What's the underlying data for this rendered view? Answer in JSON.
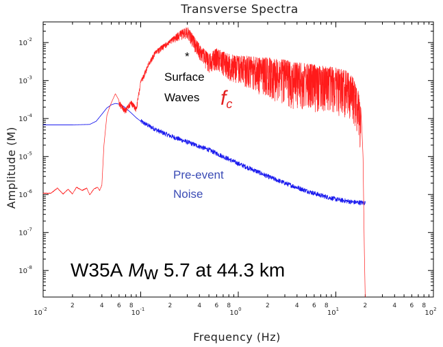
{
  "chart_data": {
    "type": "line",
    "title": "Transverse Spectra",
    "xlabel": "Frequency (Hz)",
    "ylabel": "Amplitude (M)",
    "xscale": "log",
    "yscale": "log",
    "xlim": [
      0.01,
      100
    ],
    "ylim": [
      2e-09,
      0.035
    ],
    "grid": false,
    "x_major_ticks": [
      {
        "base": "10",
        "exp": "-2",
        "value": 0.01
      },
      {
        "base": "10",
        "exp": "-1",
        "value": 0.1
      },
      {
        "base": "10",
        "exp": "0",
        "value": 1
      },
      {
        "base": "10",
        "exp": "1",
        "value": 10
      },
      {
        "base": "10",
        "exp": "2",
        "value": 100
      }
    ],
    "x_minor_labels": [
      "2",
      "4",
      "6",
      "8"
    ],
    "y_major_ticks": [
      {
        "base": "10",
        "exp": "-8",
        "value": 1e-08
      },
      {
        "base": "10",
        "exp": "-7",
        "value": 1e-07
      },
      {
        "base": "10",
        "exp": "-6",
        "value": 1e-06
      },
      {
        "base": "10",
        "exp": "-5",
        "value": 1e-05
      },
      {
        "base": "10",
        "exp": "-4",
        "value": 0.0001
      },
      {
        "base": "10",
        "exp": "-3",
        "value": 0.001
      },
      {
        "base": "10",
        "exp": "-2",
        "value": 0.01
      }
    ],
    "series": [
      {
        "color": "#ff1a1a",
        "style": "noisy-spectrum",
        "x": [
          0.01,
          0.012,
          0.014,
          0.016,
          0.018,
          0.02,
          0.022,
          0.025,
          0.028,
          0.03,
          0.033,
          0.036,
          0.038,
          0.04,
          0.042,
          0.045,
          0.048,
          0.05,
          0.055,
          0.06,
          0.065,
          0.07,
          0.075,
          0.08,
          0.09,
          0.1,
          0.12,
          0.14,
          0.16,
          0.2,
          0.25,
          0.3,
          0.35,
          0.4,
          0.5,
          0.6,
          0.7,
          0.8,
          1.0,
          1.3,
          1.6,
          2.0,
          3.0,
          4.0,
          5.0,
          7.0,
          10.0,
          13.0,
          15.0,
          17.0,
          18.0,
          18.5,
          19.0,
          19.3,
          19.6,
          20.0
        ],
        "y": [
          1.1e-06,
          1.1e-06,
          1.5e-06,
          1.05e-06,
          1.4e-06,
          1.05e-06,
          1.6e-06,
          1.3e-06,
          1.5e-06,
          1e-06,
          1.4e-06,
          1.6e-06,
          1.3e-06,
          1.8e-06,
          2e-05,
          0.00012,
          0.0002,
          0.00026,
          0.00045,
          0.0003,
          0.00022,
          0.00018,
          0.00025,
          0.0003,
          0.0002,
          0.001,
          0.003,
          0.006,
          0.008,
          0.012,
          0.02,
          0.026,
          0.015,
          0.009,
          0.005,
          0.007,
          0.006,
          0.005,
          0.0045,
          0.0045,
          0.004,
          0.004,
          0.0035,
          0.003,
          0.0028,
          0.0025,
          0.0022,
          0.0018,
          0.0012,
          0.0006,
          0.0002,
          5e-05,
          1e-05,
          5e-07,
          3e-08,
          2e-09
        ]
      },
      {
        "color": "#1a1aee",
        "style": "smooth-then-noisy",
        "x": [
          0.01,
          0.02,
          0.03,
          0.035,
          0.04,
          0.045,
          0.05,
          0.055,
          0.06,
          0.065,
          0.07,
          0.08,
          0.09,
          0.1,
          0.12,
          0.15,
          0.2,
          0.3,
          0.5,
          0.7,
          1.0,
          1.5,
          2.0,
          3.0,
          5.0,
          7.0,
          10.0,
          15.0,
          20.0
        ],
        "y": [
          6.8e-05,
          6.8e-05,
          7e-05,
          8.5e-05,
          0.00013,
          0.00019,
          0.00023,
          0.00025,
          0.00024,
          0.00022,
          0.00019,
          0.00014,
          0.000105,
          8.5e-05,
          6.5e-05,
          4.8e-05,
          3.5e-05,
          2.4e-05,
          1.5e-05,
          1e-05,
          6.5e-06,
          4.2e-06,
          3e-06,
          2e-06,
          1.25e-06,
          9.5e-07,
          7.5e-07,
          6.3e-07,
          6e-07
        ]
      }
    ],
    "annotations": {
      "asterisk": "*",
      "surface_line1": "Surface",
      "surface_line2": "Waves",
      "fc_main": "f",
      "fc_sub": "c",
      "noise_line1": "Pre-event",
      "noise_line2": "Noise",
      "event_station": "W35A",
      "event_mag_symbol": "M",
      "event_mag_sub": "w",
      "event_rest": "5.7 at 44.3 km"
    }
  }
}
